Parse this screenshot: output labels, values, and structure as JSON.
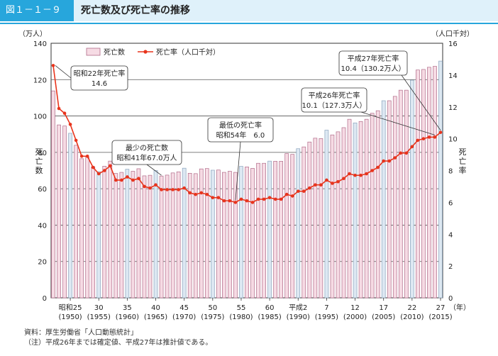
{
  "header": {
    "figure_number": "図１－１－９",
    "title": "死亡数及び死亡率の推移"
  },
  "notes": {
    "source": "資料：厚生労働省「人口動態統計」",
    "note": "（注）平成26年までは確定値、平成27年は推計値である。"
  },
  "colors": {
    "header_band": "#dff1fa",
    "header_tag": "#27a6dc",
    "bar_fill": "#f6dbe4",
    "bar_stroke": "#b06a88",
    "bar_highlight_fill": "#dde8f2",
    "bar_highlight_stroke": "#8aa3bd",
    "line": "#e8341c",
    "grid": "#555555"
  },
  "chart_data": {
    "type": "bar+line",
    "y_left_unit": "（万人）",
    "y_right_unit": "（人口千対）",
    "y_left_label": "死亡数",
    "y_right_label": "死亡率",
    "x_unit": "（年）",
    "ylim_left": [
      0,
      140
    ],
    "ylim_right": [
      0,
      16
    ],
    "y_left_ticks": [
      0,
      20,
      40,
      60,
      80,
      100,
      120,
      140
    ],
    "y_right_ticks": [
      0,
      2,
      4,
      6,
      8,
      10,
      12,
      14,
      16
    ],
    "legend": {
      "bar": "死亡数",
      "line": "死亡率（人口千対）",
      "placement": "top-left"
    },
    "years": [
      1947,
      1948,
      1949,
      1950,
      1951,
      1952,
      1953,
      1954,
      1955,
      1956,
      1957,
      1958,
      1959,
      1960,
      1961,
      1962,
      1963,
      1964,
      1965,
      1966,
      1967,
      1968,
      1969,
      1970,
      1971,
      1972,
      1973,
      1974,
      1975,
      1976,
      1977,
      1978,
      1979,
      1980,
      1981,
      1982,
      1983,
      1984,
      1985,
      1986,
      1987,
      1988,
      1989,
      1990,
      1991,
      1992,
      1993,
      1994,
      1995,
      1996,
      1997,
      1998,
      1999,
      2000,
      2001,
      2002,
      2003,
      2004,
      2005,
      2006,
      2007,
      2008,
      2009,
      2010,
      2011,
      2012,
      2013,
      2014,
      2015
    ],
    "x_tick_labels": [
      {
        "year": 1950,
        "line1": "昭和25",
        "line2": "(1950)"
      },
      {
        "year": 1955,
        "line1": "30",
        "line2": "(1955)"
      },
      {
        "year": 1960,
        "line1": "35",
        "line2": "(1960)"
      },
      {
        "year": 1965,
        "line1": "40",
        "line2": "(1965)"
      },
      {
        "year": 1970,
        "line1": "45",
        "line2": "(1970)"
      },
      {
        "year": 1975,
        "line1": "50",
        "line2": "(1975)"
      },
      {
        "year": 1980,
        "line1": "55",
        "line2": "(1980)"
      },
      {
        "year": 1985,
        "line1": "60",
        "line2": "(1985)"
      },
      {
        "year": 1990,
        "line1": "平成2",
        "line2": "(1990)"
      },
      {
        "year": 1995,
        "line1": "7",
        "line2": "(1995)"
      },
      {
        "year": 2000,
        "line1": "12",
        "line2": "(2000)"
      },
      {
        "year": 2005,
        "line1": "17",
        "line2": "(2005)"
      },
      {
        "year": 2010,
        "line1": "22",
        "line2": "(2010)"
      },
      {
        "year": 2015,
        "line1": "27",
        "line2": "(2015)"
      }
    ],
    "series": [
      {
        "kind": "bar",
        "name": "死亡数",
        "unit": "万人",
        "values": [
          113.8,
          95.1,
          94.5,
          90.5,
          83.9,
          76.5,
          77.3,
          72.1,
          69.4,
          72.4,
          75.2,
          68.4,
          69.0,
          70.7,
          69.6,
          71.0,
          67.1,
          67.4,
          70.0,
          67.0,
          67.5,
          68.7,
          69.3,
          71.3,
          68.5,
          68.3,
          70.9,
          71.1,
          70.2,
          70.3,
          69.0,
          69.6,
          69.0,
          72.3,
          72.0,
          71.2,
          74.0,
          74.0,
          75.2,
          75.1,
          75.1,
          79.3,
          78.9,
          82.0,
          83.0,
          85.7,
          87.8,
          87.6,
          92.2,
          89.6,
          91.3,
          93.6,
          98.2,
          96.2,
          97.0,
          98.2,
          101.5,
          102.9,
          108.4,
          108.4,
          110.8,
          114.2,
          114.2,
          119.7,
          125.3,
          125.6,
          126.8,
          127.3,
          130.2
        ]
      },
      {
        "kind": "line",
        "name": "死亡率（人口千対）",
        "unit": "人口千対",
        "values": [
          14.6,
          11.9,
          11.6,
          10.9,
          9.9,
          8.9,
          8.9,
          8.2,
          7.8,
          8.0,
          8.3,
          7.4,
          7.4,
          7.6,
          7.4,
          7.5,
          7.0,
          6.9,
          7.1,
          6.8,
          6.8,
          6.8,
          6.8,
          6.9,
          6.6,
          6.5,
          6.6,
          6.5,
          6.3,
          6.3,
          6.1,
          6.1,
          6.0,
          6.2,
          6.1,
          6.0,
          6.2,
          6.2,
          6.3,
          6.2,
          6.2,
          6.5,
          6.4,
          6.7,
          6.7,
          6.9,
          7.1,
          7.1,
          7.4,
          7.2,
          7.3,
          7.5,
          7.8,
          7.7,
          7.7,
          7.8,
          8.0,
          8.2,
          8.6,
          8.6,
          8.8,
          9.1,
          9.1,
          9.5,
          9.9,
          10.0,
          10.1,
          10.1,
          10.4
        ]
      }
    ],
    "annotations": [
      {
        "id": "peak",
        "year": 1947,
        "line1": "昭和22年死亡率",
        "line2": "14.6"
      },
      {
        "id": "min-deaths",
        "year": 1966,
        "line1": "最少の死亡数",
        "line2": "昭和41年67.0万人"
      },
      {
        "id": "min-rate",
        "year": 1979,
        "line1": "最低の死亡率",
        "line2": "昭和54年　6.0"
      },
      {
        "id": "h26",
        "year": 2014,
        "line1": "平成26年死亡率",
        "line2": "10.1（127.3万人）"
      },
      {
        "id": "h27",
        "year": 2015,
        "line1": "平成27年死亡率",
        "line2": "10.4（130.2万人）"
      }
    ]
  }
}
